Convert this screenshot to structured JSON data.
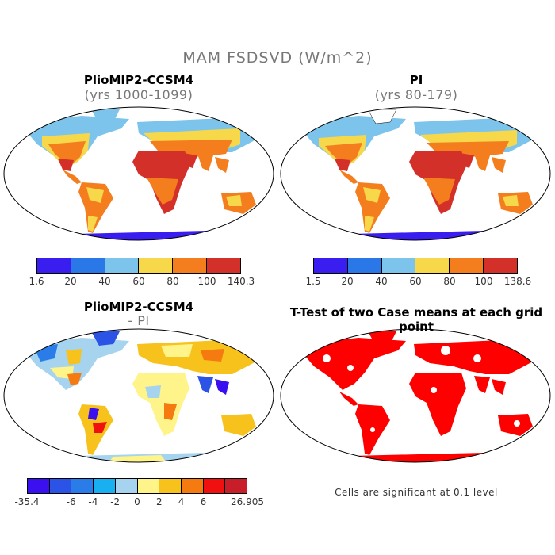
{
  "title": "MAM FSDSVD (W/m^2)",
  "panels": [
    {
      "title": "PlioMIP2-CCSM4",
      "subtitle": "(yrs 1000-1099)"
    },
    {
      "title": "PI",
      "subtitle": "(yrs 80-179)"
    },
    {
      "title": "PlioMIP2-CCSM4",
      "subtitle": "- PI"
    },
    {
      "title": "T-Test of two Case means at each grid point",
      "subtitle": ""
    }
  ],
  "colorbars": {
    "top_left": {
      "colors": [
        "#3a1ef0",
        "#2a78e8",
        "#7cc4ec",
        "#f6d84a",
        "#f47d1e",
        "#d4302a"
      ],
      "labels": [
        "1.6",
        "20",
        "40",
        "60",
        "80",
        "100",
        "140.3"
      ]
    },
    "top_right": {
      "colors": [
        "#3a1ef0",
        "#2a78e8",
        "#7cc4ec",
        "#f6d84a",
        "#f47d1e",
        "#d4302a"
      ],
      "labels": [
        "1.5",
        "20",
        "40",
        "60",
        "80",
        "100",
        "138.6"
      ]
    },
    "bottom_left": {
      "colors": [
        "#3a10f0",
        "#2b54e6",
        "#2a7ce8",
        "#18b0f0",
        "#a6d4ee",
        "#fff48a",
        "#f8c21c",
        "#f57a10",
        "#f01010",
        "#c81e2a"
      ],
      "labels": [
        "-35.4",
        "-6",
        "-4",
        "-2",
        "0",
        "2",
        "4",
        "6",
        "26.905"
      ]
    }
  },
  "ttest_note": "Cells are significant at 0.1 level",
  "colors": {
    "significant": "#ff0000",
    "ocean": "#ffffff",
    "coast": "#000000"
  }
}
